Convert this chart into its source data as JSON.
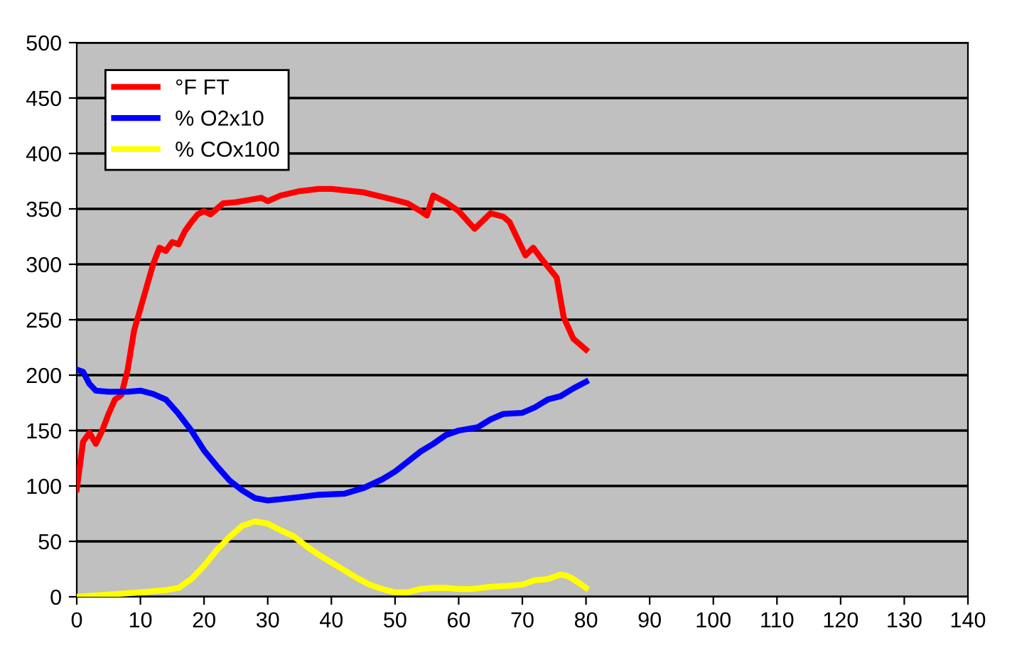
{
  "chart_data": {
    "type": "line",
    "xlim": [
      0,
      140
    ],
    "xticks": [
      0,
      10,
      20,
      30,
      40,
      50,
      60,
      70,
      80,
      90,
      100,
      110,
      120,
      130,
      140
    ],
    "ylim": [
      0,
      500
    ],
    "yticks": [
      0,
      50,
      100,
      150,
      200,
      250,
      300,
      350,
      400,
      450,
      500
    ],
    "grid": "y",
    "legend": "top left",
    "marker": "none",
    "line_style": "solid",
    "series": [
      {
        "name": "°F FT",
        "color": "#ff0000",
        "x": [
          0,
          1,
          2,
          3,
          4,
          5,
          6,
          7,
          8,
          9,
          10,
          11,
          12,
          13,
          14,
          15,
          16,
          17,
          18,
          19,
          20,
          21,
          22,
          23,
          25,
          27,
          29,
          30,
          32,
          35,
          38,
          40,
          45,
          50,
          52,
          54,
          55,
          56,
          58,
          60,
          62.5,
          65,
          67,
          68,
          70.5,
          71.7,
          73,
          75.4,
          76.5,
          78,
          80
        ],
        "values": [
          97,
          140,
          148,
          138,
          150,
          165,
          178,
          182,
          205,
          240,
          260,
          280,
          300,
          315,
          312,
          320,
          318,
          330,
          338,
          345,
          348,
          345,
          350,
          355,
          356,
          358,
          360,
          357,
          362,
          366,
          368,
          368,
          365,
          358,
          355,
          348,
          344,
          362,
          356,
          348,
          332,
          346,
          343,
          338,
          308,
          315,
          305,
          288,
          252,
          233,
          223
        ]
      },
      {
        "name": "% O2x10",
        "color": "#0000ff",
        "x": [
          0,
          1,
          2,
          3,
          5,
          8,
          10,
          12,
          14,
          16,
          18,
          20,
          22,
          24,
          26,
          28,
          30,
          32,
          35,
          38,
          42,
          45,
          48,
          50,
          52,
          54,
          56,
          58,
          60,
          63,
          65,
          67,
          70,
          72,
          74,
          76,
          78,
          80
        ],
        "values": [
          205,
          203,
          192,
          186,
          185,
          185,
          186,
          183,
          178,
          165,
          150,
          132,
          118,
          105,
          96,
          89,
          87,
          88,
          90,
          92,
          93,
          98,
          106,
          113,
          122,
          131,
          138,
          146,
          150,
          153,
          160,
          165,
          166,
          171,
          178,
          181,
          188,
          194
        ]
      },
      {
        "name": "% COx100",
        "color": "#ffff00",
        "x": [
          0,
          5,
          10,
          14,
          16,
          18,
          20,
          22,
          24,
          26,
          28,
          30,
          32,
          34,
          36,
          38,
          40,
          42,
          44,
          46,
          48,
          50,
          52,
          54,
          56,
          58,
          60,
          62,
          65,
          68,
          70,
          72,
          74,
          76,
          77,
          78,
          80
        ],
        "values": [
          0,
          2,
          4,
          6,
          8,
          16,
          28,
          42,
          54,
          64,
          68,
          66,
          60,
          55,
          46,
          38,
          31,
          24,
          17,
          11,
          7,
          4,
          4,
          7,
          8,
          8,
          7,
          7,
          9,
          10,
          11,
          15,
          16,
          20,
          19,
          16,
          8
        ]
      }
    ]
  }
}
